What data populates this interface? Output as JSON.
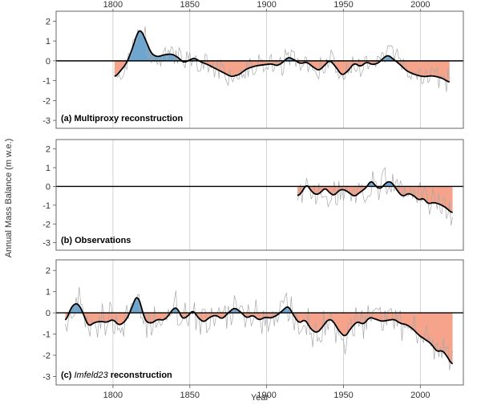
{
  "chart_data": {
    "type": "area",
    "ylabel": "Annual Mass Balance (m w.e.)",
    "xlabel": "Year",
    "x_ticks": [
      1800,
      1850,
      1900,
      1950,
      2000
    ],
    "y_ticks": [
      2,
      1,
      0,
      -1,
      -2,
      -3
    ],
    "xlim": [
      1763,
      2028
    ],
    "ylim": [
      -3.4,
      2.5
    ],
    "colors": {
      "positive": "#6fa6cf",
      "negative": "#f5a48b",
      "smooth": "#000000",
      "annual": "#a8a8a8",
      "grid": "#c8c8c8",
      "frame": "#555555"
    },
    "panels": [
      {
        "id": "a",
        "label_prefix": "(a)",
        "label_name": "Multiproxy reconstruction",
        "label_italic": false,
        "start": 1801,
        "end": 2019,
        "smooth_knots": [
          [
            1801,
            -0.85
          ],
          [
            1805,
            -0.5
          ],
          [
            1809,
            -0.1
          ],
          [
            1813,
            0.7
          ],
          [
            1816,
            1.45
          ],
          [
            1818,
            1.6
          ],
          [
            1821,
            1.1
          ],
          [
            1825,
            0.35
          ],
          [
            1829,
            0.2
          ],
          [
            1833,
            0.3
          ],
          [
            1838,
            0.35
          ],
          [
            1842,
            0.2
          ],
          [
            1846,
            -0.1
          ],
          [
            1850,
            0.05
          ],
          [
            1853,
            0.15
          ],
          [
            1857,
            -0.05
          ],
          [
            1862,
            -0.2
          ],
          [
            1867,
            -0.4
          ],
          [
            1872,
            -0.6
          ],
          [
            1877,
            -0.8
          ],
          [
            1882,
            -0.7
          ],
          [
            1887,
            -0.4
          ],
          [
            1893,
            -0.25
          ],
          [
            1898,
            -0.2
          ],
          [
            1903,
            -0.15
          ],
          [
            1907,
            -0.25
          ],
          [
            1911,
            -0.05
          ],
          [
            1914,
            0.2
          ],
          [
            1918,
            0.05
          ],
          [
            1922,
            -0.15
          ],
          [
            1926,
            -0.05
          ],
          [
            1930,
            -0.3
          ],
          [
            1934,
            -0.5
          ],
          [
            1938,
            -0.2
          ],
          [
            1941,
            0.05
          ],
          [
            1945,
            -0.3
          ],
          [
            1949,
            -0.75
          ],
          [
            1953,
            -0.5
          ],
          [
            1957,
            -0.1
          ],
          [
            1961,
            -0.3
          ],
          [
            1965,
            -0.05
          ],
          [
            1969,
            -0.2
          ],
          [
            1973,
            -0.1
          ],
          [
            1976,
            0.15
          ],
          [
            1979,
            0.3
          ],
          [
            1983,
            0.05
          ],
          [
            1987,
            -0.2
          ],
          [
            1991,
            -0.5
          ],
          [
            1995,
            -0.65
          ],
          [
            1999,
            -0.75
          ],
          [
            2003,
            -0.8
          ],
          [
            2007,
            -0.75
          ],
          [
            2011,
            -0.8
          ],
          [
            2015,
            -0.9
          ],
          [
            2019,
            -1.1
          ]
        ],
        "noise_amp": 0.55
      },
      {
        "id": "b",
        "label_prefix": "(b)",
        "label_name": "Observations",
        "label_italic": false,
        "start": 1920,
        "end": 2021,
        "smooth_knots": [
          [
            1920,
            -0.55
          ],
          [
            1923,
            -0.3
          ],
          [
            1926,
            0.15
          ],
          [
            1929,
            -0.25
          ],
          [
            1932,
            -0.45
          ],
          [
            1935,
            -0.35
          ],
          [
            1938,
            -0.05
          ],
          [
            1941,
            -0.35
          ],
          [
            1944,
            -0.5
          ],
          [
            1947,
            -0.2
          ],
          [
            1950,
            -0.15
          ],
          [
            1954,
            -0.35
          ],
          [
            1957,
            -0.55
          ],
          [
            1961,
            -0.3
          ],
          [
            1965,
            -0.05
          ],
          [
            1968,
            0.35
          ],
          [
            1971,
            0.0
          ],
          [
            1974,
            -0.15
          ],
          [
            1977,
            0.15
          ],
          [
            1980,
            0.3
          ],
          [
            1983,
            0.05
          ],
          [
            1986,
            -0.35
          ],
          [
            1989,
            -0.55
          ],
          [
            1992,
            -0.35
          ],
          [
            1996,
            -0.5
          ],
          [
            1999,
            -0.75
          ],
          [
            2002,
            -0.6
          ],
          [
            2005,
            -0.95
          ],
          [
            2008,
            -0.85
          ],
          [
            2011,
            -0.9
          ],
          [
            2014,
            -1.0
          ],
          [
            2017,
            -1.15
          ],
          [
            2021,
            -1.45
          ]
        ],
        "noise_amp": 0.8
      },
      {
        "id": "c",
        "label_prefix": "(c)",
        "label_name": "Imfeld23",
        "label_suffix": " reconstruction",
        "label_italic": true,
        "start": 1769,
        "end": 2021,
        "smooth_knots": [
          [
            1769,
            -0.5
          ],
          [
            1772,
            0.15
          ],
          [
            1775,
            0.45
          ],
          [
            1778,
            0.4
          ],
          [
            1781,
            -0.1
          ],
          [
            1784,
            -0.65
          ],
          [
            1788,
            -0.45
          ],
          [
            1792,
            -0.4
          ],
          [
            1796,
            -0.45
          ],
          [
            1800,
            -0.3
          ],
          [
            1804,
            -0.6
          ],
          [
            1808,
            -0.4
          ],
          [
            1811,
            0.0
          ],
          [
            1814,
            0.6
          ],
          [
            1816,
            0.85
          ],
          [
            1818,
            0.4
          ],
          [
            1821,
            -0.4
          ],
          [
            1825,
            -0.5
          ],
          [
            1829,
            -0.3
          ],
          [
            1833,
            -0.35
          ],
          [
            1836,
            -0.15
          ],
          [
            1839,
            0.2
          ],
          [
            1842,
            0.25
          ],
          [
            1845,
            -0.3
          ],
          [
            1849,
            -0.15
          ],
          [
            1852,
            0.15
          ],
          [
            1855,
            -0.2
          ],
          [
            1859,
            -0.45
          ],
          [
            1863,
            -0.2
          ],
          [
            1867,
            -0.1
          ],
          [
            1871,
            -0.3
          ],
          [
            1875,
            0.0
          ],
          [
            1879,
            0.25
          ],
          [
            1883,
            0.05
          ],
          [
            1887,
            -0.25
          ],
          [
            1891,
            -0.1
          ],
          [
            1895,
            -0.35
          ],
          [
            1899,
            -0.2
          ],
          [
            1903,
            -0.25
          ],
          [
            1907,
            -0.1
          ],
          [
            1911,
            0.15
          ],
          [
            1914,
            0.35
          ],
          [
            1917,
            -0.05
          ],
          [
            1921,
            -0.5
          ],
          [
            1925,
            -0.3
          ],
          [
            1929,
            -0.8
          ],
          [
            1933,
            -0.95
          ],
          [
            1937,
            -0.6
          ],
          [
            1940,
            -0.3
          ],
          [
            1943,
            -0.35
          ],
          [
            1947,
            -0.85
          ],
          [
            1951,
            -1.15
          ],
          [
            1955,
            -0.7
          ],
          [
            1959,
            -0.4
          ],
          [
            1963,
            -0.55
          ],
          [
            1967,
            -0.2
          ],
          [
            1971,
            -0.3
          ],
          [
            1975,
            -0.4
          ],
          [
            1979,
            -0.35
          ],
          [
            1983,
            -0.3
          ],
          [
            1987,
            -0.5
          ],
          [
            1991,
            -0.55
          ],
          [
            1995,
            -0.75
          ],
          [
            1999,
            -1.05
          ],
          [
            2003,
            -1.25
          ],
          [
            2007,
            -1.45
          ],
          [
            2011,
            -1.85
          ],
          [
            2014,
            -1.75
          ],
          [
            2017,
            -2.0
          ],
          [
            2021,
            -2.5
          ]
        ],
        "noise_amp": 0.7
      }
    ]
  }
}
